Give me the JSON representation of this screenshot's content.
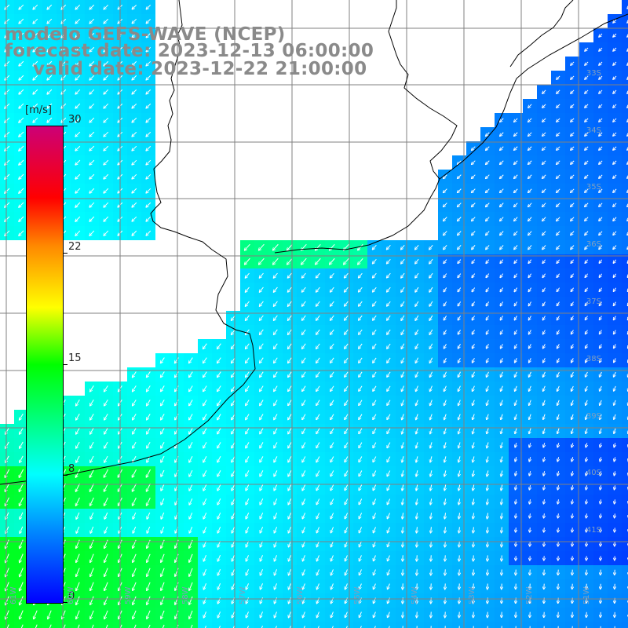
{
  "title": {
    "line1": "modelo GEFS-WAVE (NCEP)",
    "line2": "forecast date: 2023-12-13 06:00:00",
    "line3": "valid date: 2023-12-22 21:00:00"
  },
  "colorbar": {
    "unit": "[m/s]",
    "ticks": [
      {
        "value": 0,
        "label": "0"
      },
      {
        "value": 8,
        "label": "8"
      },
      {
        "value": 15,
        "label": "15"
      },
      {
        "value": 22,
        "label": "22"
      },
      {
        "value": 30,
        "label": "30"
      }
    ],
    "range": [
      0,
      30
    ],
    "colors": [
      "#0000ff",
      "#0099ff",
      "#00ffff",
      "#00ff00",
      "#ffff00",
      "#ff8800",
      "#ff0000",
      "#cc0066"
    ]
  },
  "map": {
    "lat_labels": [
      "33S",
      "34S",
      "35S",
      "36S",
      "37S",
      "38S",
      "39S",
      "40S",
      "41S"
    ],
    "lon_labels": [
      "61W",
      "60W",
      "59W",
      "58W",
      "57W",
      "56W",
      "55W",
      "54W",
      "53W",
      "52W",
      "51W"
    ],
    "land_color": "#ffffff",
    "grid_color": "#808080",
    "arrow_color": "#ffffff",
    "wind_direction": "from north-east"
  }
}
